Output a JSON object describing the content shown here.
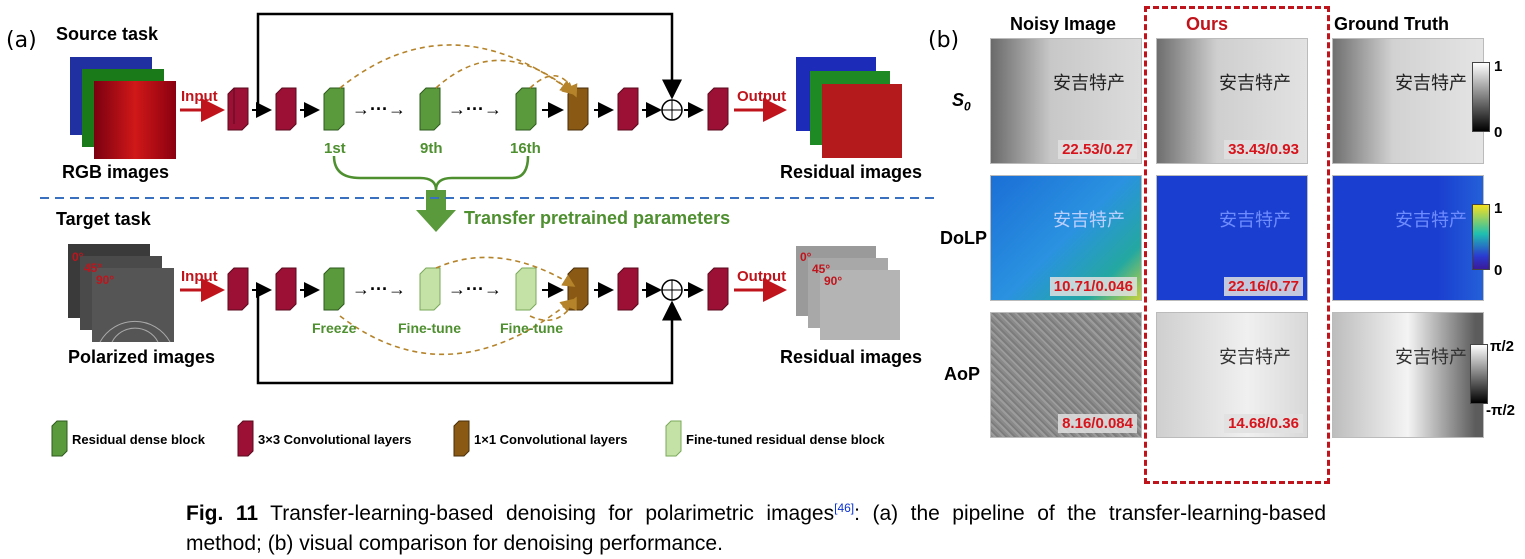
{
  "panel_a": {
    "label": "(a)",
    "source_task": "Source task",
    "rgb_images": "RGB images",
    "input": "Input",
    "output": "Output",
    "residual_images_top": "Residual images",
    "block_1st": "1st",
    "block_9th": "9th",
    "block_16th": "16th",
    "transfer": "Transfer pretrained parameters",
    "target_task": "Target task",
    "angles": [
      "0°",
      "45°",
      "90°"
    ],
    "polarized_images": "Polarized images",
    "residual_images_bottom": "Residual images",
    "freeze": "Freeze",
    "fine_tune_1": "Fine-tune",
    "fine_tune_2": "Fine-tune",
    "dots": "···",
    "legend": {
      "rdb": "Residual dense block",
      "conv3": "3×3 Convolutional layers",
      "conv1": "1×1 Convolutional layers",
      "ft_rdb": "Fine-tuned residual dense block"
    }
  },
  "panel_b": {
    "label": "(b)",
    "col_noisy": "Noisy Image",
    "col_ours": "Ours",
    "col_gt": "Ground Truth",
    "row_s0": "S",
    "row_s0_sub": "0",
    "row_dolp": "DoLP",
    "row_aop": "AoP",
    "metrics": {
      "s0_noisy": "22.53/0.27",
      "s0_ours": "33.43/0.93",
      "dolp_noisy": "10.71/0.046",
      "dolp_ours": "22.16/0.77",
      "aop_noisy": "8.16/0.084",
      "aop_ours": "14.68/0.36"
    },
    "colorbars": {
      "s0_max": "1",
      "s0_min": "0",
      "dolp_max": "1",
      "dolp_min": "0",
      "aop_max": "π/2",
      "aop_min": "-π/2"
    },
    "sample_text": "安吉特产",
    "colors": {
      "ours_box": "#c0141c",
      "dolp_bg": "#1a3fd0"
    }
  },
  "caption": {
    "fig": "Fig. 11",
    "text": " Transfer-learning-based denoising for polarimetric images",
    "ref": "[46]",
    "rest": ": (a) the pipeline of the transfer-learning-based method; (b) visual comparison for denoising performance."
  },
  "colors": {
    "conv3": "#9b1034",
    "rdb": "#5a9a3c",
    "conv1": "#8a5a14",
    "ft_rdb": "#c4e2a6",
    "arrow_red": "#c0141c",
    "dashed_blue": "#3a70c0",
    "dashed_orange": "#b5832a"
  }
}
